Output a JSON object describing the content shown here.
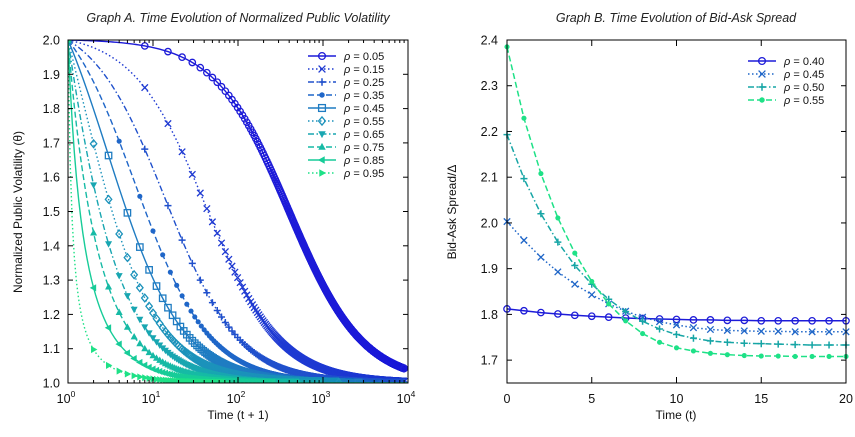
{
  "chart_data": [
    {
      "type": "line",
      "title": "Graph A. Time Evolution of Normalized Public Volatility",
      "xlabel": "Time (t + 1)",
      "ylabel": "Normalized Public Volatility (θ)",
      "xscale": "log",
      "xlim": [
        1,
        10000
      ],
      "ylim": [
        1.0,
        2.0
      ],
      "xticks": [
        {
          "base": "10",
          "exp": "0"
        },
        {
          "base": "10",
          "exp": "1"
        },
        {
          "base": "10",
          "exp": "2"
        },
        {
          "base": "10",
          "exp": "3"
        },
        {
          "base": "10",
          "exp": "4"
        }
      ],
      "yticks": [
        "1.0",
        "1.1",
        "1.2",
        "1.3",
        "1.4",
        "1.5",
        "1.6",
        "1.7",
        "1.8",
        "1.9",
        "2.0"
      ],
      "legend_position": "top-right",
      "legend_symbol": "ρ",
      "curve_model": "theta = 1 + 1/(1 + kappa*(x-1)), kappa ≈ rho^2/(1-rho^2)",
      "series": [
        {
          "name": "= 0.05",
          "rho": 0.05,
          "color": "#1d1bd8",
          "marker": "circle",
          "dash": "solid"
        },
        {
          "name": "= 0.15",
          "rho": 0.15,
          "color": "#1f3ad2",
          "marker": "x",
          "dash": "dotted"
        },
        {
          "name": "= 0.25",
          "rho": 0.25,
          "color": "#2050cc",
          "marker": "plus",
          "dash": "dashdot"
        },
        {
          "name": "= 0.35",
          "rho": 0.35,
          "color": "#1f66c8",
          "marker": "dot",
          "dash": "dashed"
        },
        {
          "name": "= 0.45",
          "rho": 0.45,
          "color": "#1f7cc2",
          "marker": "square",
          "dash": "solid"
        },
        {
          "name": "= 0.55",
          "rho": 0.55,
          "color": "#1c92bb",
          "marker": "diamond",
          "dash": "dotted"
        },
        {
          "name": "= 0.65",
          "rho": 0.65,
          "color": "#18a6b1",
          "marker": "tri-down",
          "dash": "dashdot"
        },
        {
          "name": "= 0.75",
          "rho": 0.75,
          "color": "#16baa5",
          "marker": "tri-up",
          "dash": "dashed"
        },
        {
          "name": "= 0.85",
          "rho": 0.85,
          "color": "#17cc98",
          "marker": "tri-left",
          "dash": "solid"
        },
        {
          "name": "= 0.95",
          "rho": 0.95,
          "color": "#1ee187",
          "marker": "tri-right",
          "dash": "dotted"
        }
      ]
    },
    {
      "type": "line",
      "title": "Graph B. Time Evolution of Bid-Ask Spread",
      "xlabel": "Time (t)",
      "ylabel": "Bid-Ask Spread/Δ",
      "xlim": [
        0,
        20
      ],
      "ylim": [
        1.65,
        2.4
      ],
      "xticks": [
        "0",
        "5",
        "10",
        "15",
        "20"
      ],
      "yticks": [
        "1.7",
        "1.8",
        "1.9",
        "2.0",
        "2.1",
        "2.2",
        "2.3",
        "2.4"
      ],
      "legend_position": "top-right",
      "legend_symbol": "ρ",
      "x": [
        0,
        1,
        2,
        3,
        4,
        5,
        6,
        7,
        8,
        9,
        10,
        11,
        12,
        13,
        14,
        15,
        16,
        17,
        18,
        19,
        20
      ],
      "series": [
        {
          "name": "= 0.40",
          "color": "#1d1bd8",
          "marker": "circle",
          "dash": "solid",
          "values": [
            1.812,
            1.808,
            1.804,
            1.801,
            1.798,
            1.796,
            1.794,
            1.792,
            1.791,
            1.79,
            1.789,
            1.788,
            1.788,
            1.787,
            1.787,
            1.786,
            1.786,
            1.786,
            1.786,
            1.786,
            1.786
          ]
        },
        {
          "name": "= 0.45",
          "color": "#1f66c8",
          "marker": "x",
          "dash": "dotted",
          "values": [
            2.003,
            1.962,
            1.925,
            1.893,
            1.866,
            1.843,
            1.823,
            1.807,
            1.794,
            1.784,
            1.777,
            1.771,
            1.767,
            1.765,
            1.764,
            1.763,
            1.763,
            1.762,
            1.762,
            1.762,
            1.762
          ]
        },
        {
          "name": "= 0.50",
          "color": "#16a5a5",
          "marker": "plus",
          "dash": "dashdot",
          "values": [
            2.193,
            2.097,
            2.02,
            1.958,
            1.907,
            1.866,
            1.833,
            1.806,
            1.785,
            1.768,
            1.756,
            1.748,
            1.742,
            1.739,
            1.737,
            1.736,
            1.735,
            1.734,
            1.733,
            1.733,
            1.733
          ]
        },
        {
          "name": "= 0.55",
          "color": "#1ee187",
          "marker": "dot",
          "dash": "dashed",
          "values": [
            2.385,
            2.229,
            2.108,
            2.011,
            1.934,
            1.872,
            1.823,
            1.786,
            1.758,
            1.739,
            1.727,
            1.72,
            1.715,
            1.712,
            1.71,
            1.709,
            1.709,
            1.708,
            1.708,
            1.708,
            1.708
          ]
        }
      ]
    }
  ]
}
